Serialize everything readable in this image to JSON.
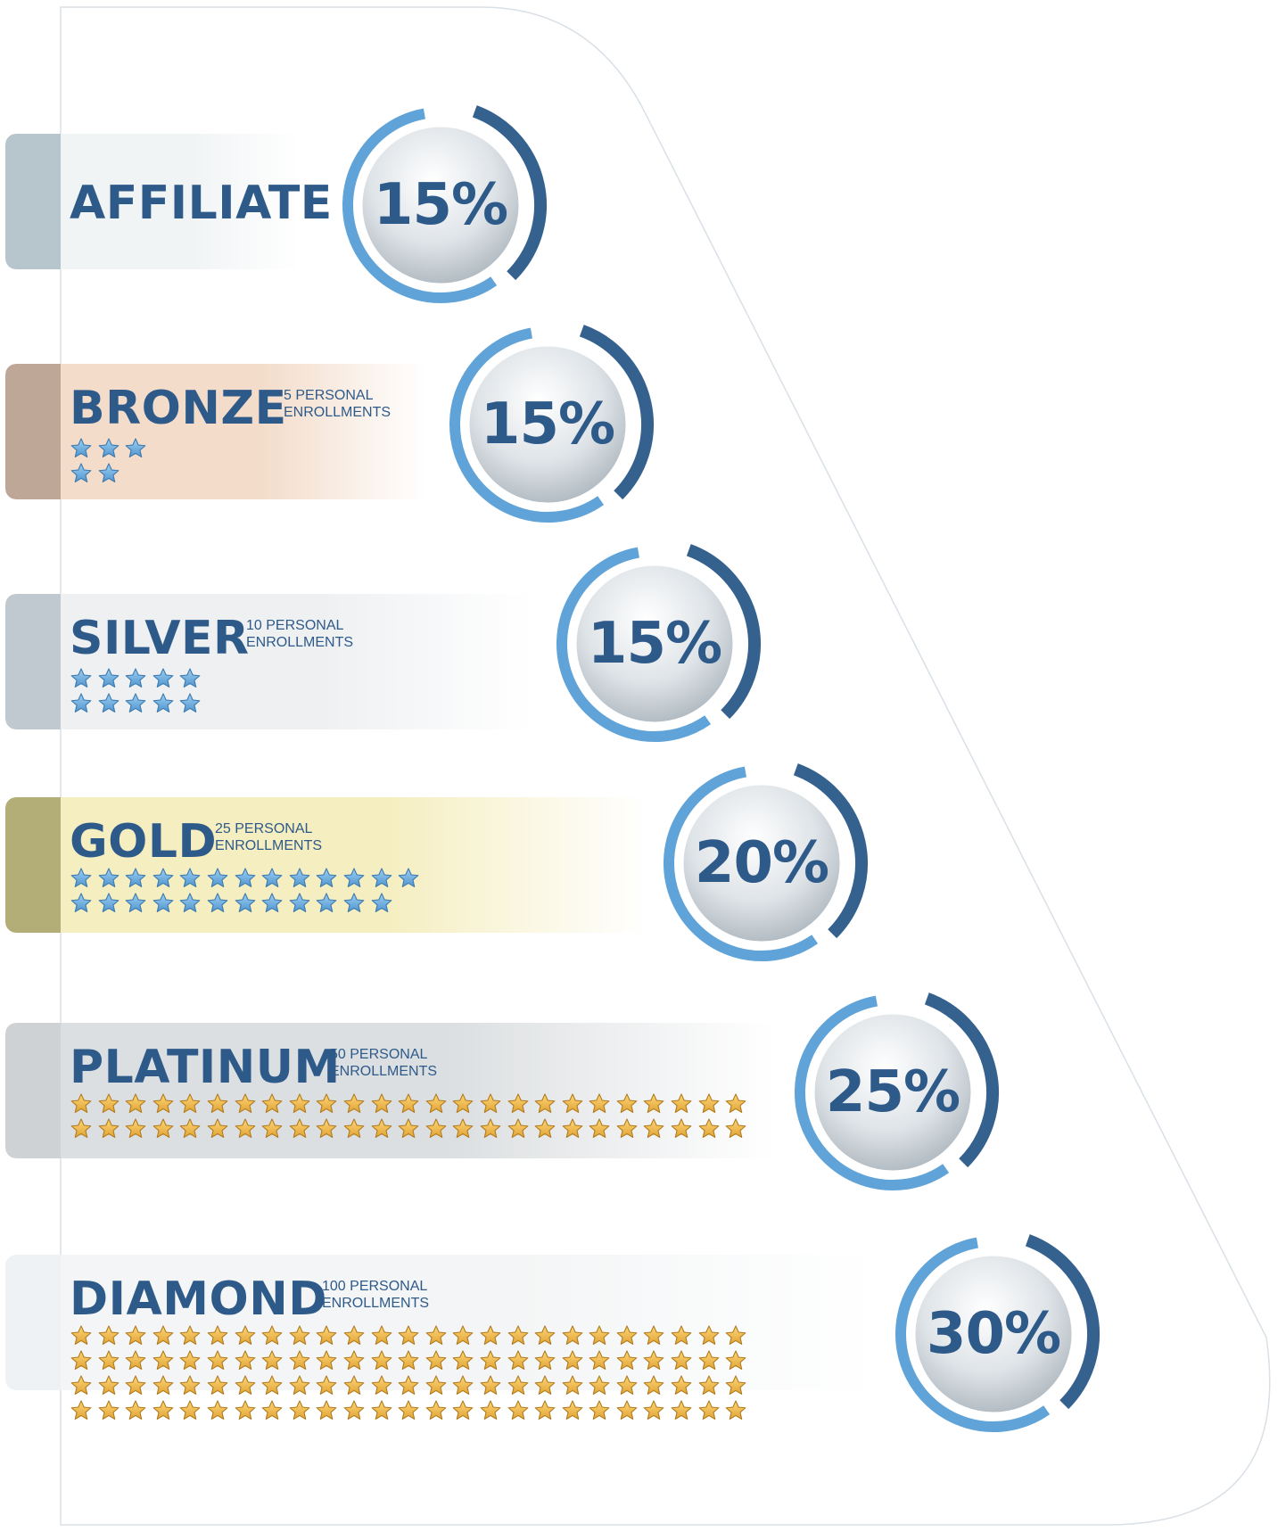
{
  "colors": {
    "text": "#2e5a8a",
    "ring_dark": "#35618f",
    "ring_light": "#5fa3d8",
    "star_blue": "#6aaee3",
    "star_gold": "#f2b84b"
  },
  "tiers": [
    {
      "name": "AFFILIATE",
      "requirement": "",
      "stars": 0,
      "star_color": "blue",
      "percent": "15%",
      "tab_color": "#b7c5cc",
      "fill_color": "#f1f4f5"
    },
    {
      "name": "BRONZE",
      "requirement": "5 PERSONAL ENROLLMENTS",
      "stars": 5,
      "star_color": "blue",
      "percent": "15%",
      "tab_color": "#bfa797",
      "fill_color": "#f3dcca"
    },
    {
      "name": "SILVER",
      "requirement": "10 PERSONAL ENROLLMENTS",
      "stars": 10,
      "star_color": "blue",
      "percent": "15%",
      "tab_color": "#c0c8d0",
      "fill_color": "#eef0f2"
    },
    {
      "name": "GOLD",
      "requirement": "25 PERSONAL ENROLLMENTS",
      "stars": 25,
      "star_color": "blue",
      "percent": "20%",
      "tab_color": "#b3ad78",
      "fill_color": "#f5eec0"
    },
    {
      "name": "PLATINUM",
      "requirement": "50 PERSONAL ENROLLMENTS",
      "stars": 50,
      "star_color": "gold",
      "percent": "25%",
      "tab_color": "#cfd2d4",
      "fill_color": "#dcdfe1"
    },
    {
      "name": "DIAMOND",
      "requirement": "100 PERSONAL ENROLLMENTS",
      "stars": 100,
      "star_color": "gold",
      "percent": "30%",
      "tab_color": "#eef2f4",
      "fill_color": "#f3f5f6"
    }
  ]
}
